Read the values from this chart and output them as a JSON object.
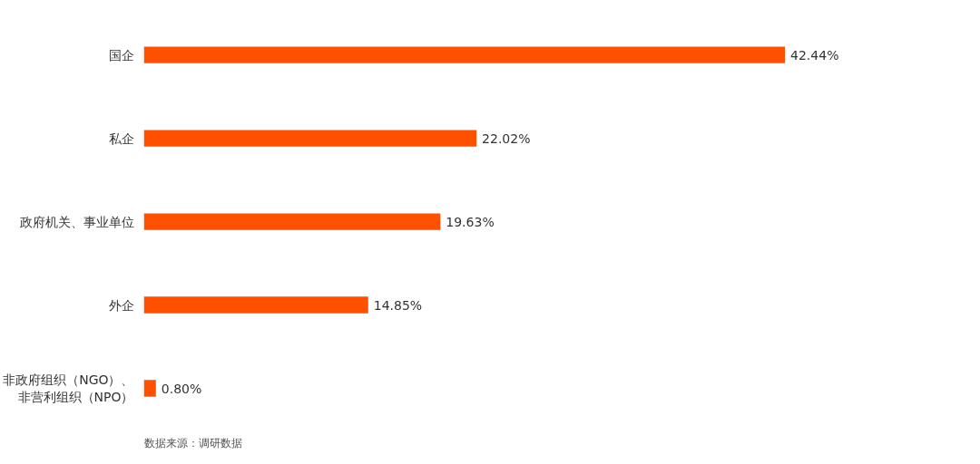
{
  "chart_data": {
    "type": "bar",
    "orientation": "horizontal",
    "categories": [
      "国企",
      "私企",
      "政府机关、事业单位",
      "外企",
      "非政府组织（NGO）、非营利组织（NPO）"
    ],
    "values": [
      42.44,
      22.02,
      19.63,
      14.85,
      0.8
    ],
    "value_labels": [
      "42.44%",
      "22.02%",
      "19.63%",
      "14.85%",
      "0.80%"
    ],
    "color": "#ff5000",
    "grid": false,
    "annotations": [
      "数据来源：调研数据"
    ]
  }
}
